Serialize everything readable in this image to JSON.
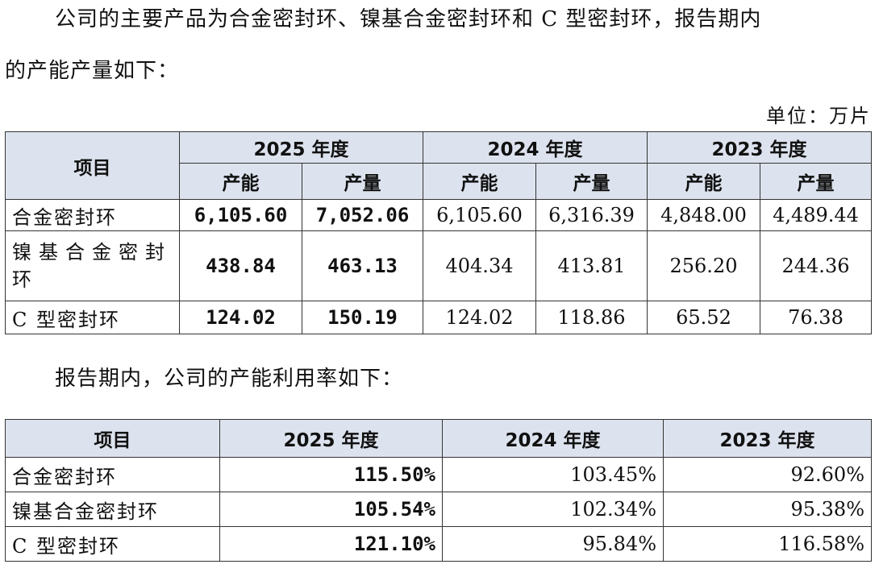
{
  "intro": {
    "line1": "公司的主要产品为合金密封环、镍基合金密封环和 C 型密封环，报告期内",
    "line2": "的产能产量如下：",
    "unit": "单位：万片"
  },
  "table1": {
    "header_item": "项目",
    "years": [
      "2025 年度",
      "2024 年度",
      "2023 年度"
    ],
    "sub": [
      "产能",
      "产量",
      "产能",
      "产量",
      "产能",
      "产量"
    ],
    "rows": [
      {
        "label": "合金密封环",
        "values": [
          "6,105.60",
          "7,052.06",
          "6,105.60",
          "6,316.39",
          "4,848.00",
          "4,489.44"
        ]
      },
      {
        "label": "镍基合金密封环",
        "values": [
          "438.84",
          "463.13",
          "404.34",
          "413.81",
          "256.20",
          "244.36"
        ]
      },
      {
        "label": "C 型密封环",
        "values": [
          "124.02",
          "150.19",
          "124.02",
          "118.86",
          "65.52",
          "76.38"
        ]
      }
    ]
  },
  "para2": "报告期内，公司的产能利用率如下：",
  "table2": {
    "header_item": "项目",
    "years": [
      "2025 年度",
      "2024 年度",
      "2023 年度"
    ],
    "rows": [
      {
        "label": "合金密封环",
        "values": [
          "115.50%",
          "103.45%",
          "92.60%"
        ]
      },
      {
        "label": "镍基合金密封环",
        "values": [
          "105.54%",
          "102.34%",
          "95.38%"
        ]
      },
      {
        "label": "C 型密封环",
        "values": [
          "121.10%",
          "95.84%",
          "116.58%"
        ]
      }
    ]
  }
}
